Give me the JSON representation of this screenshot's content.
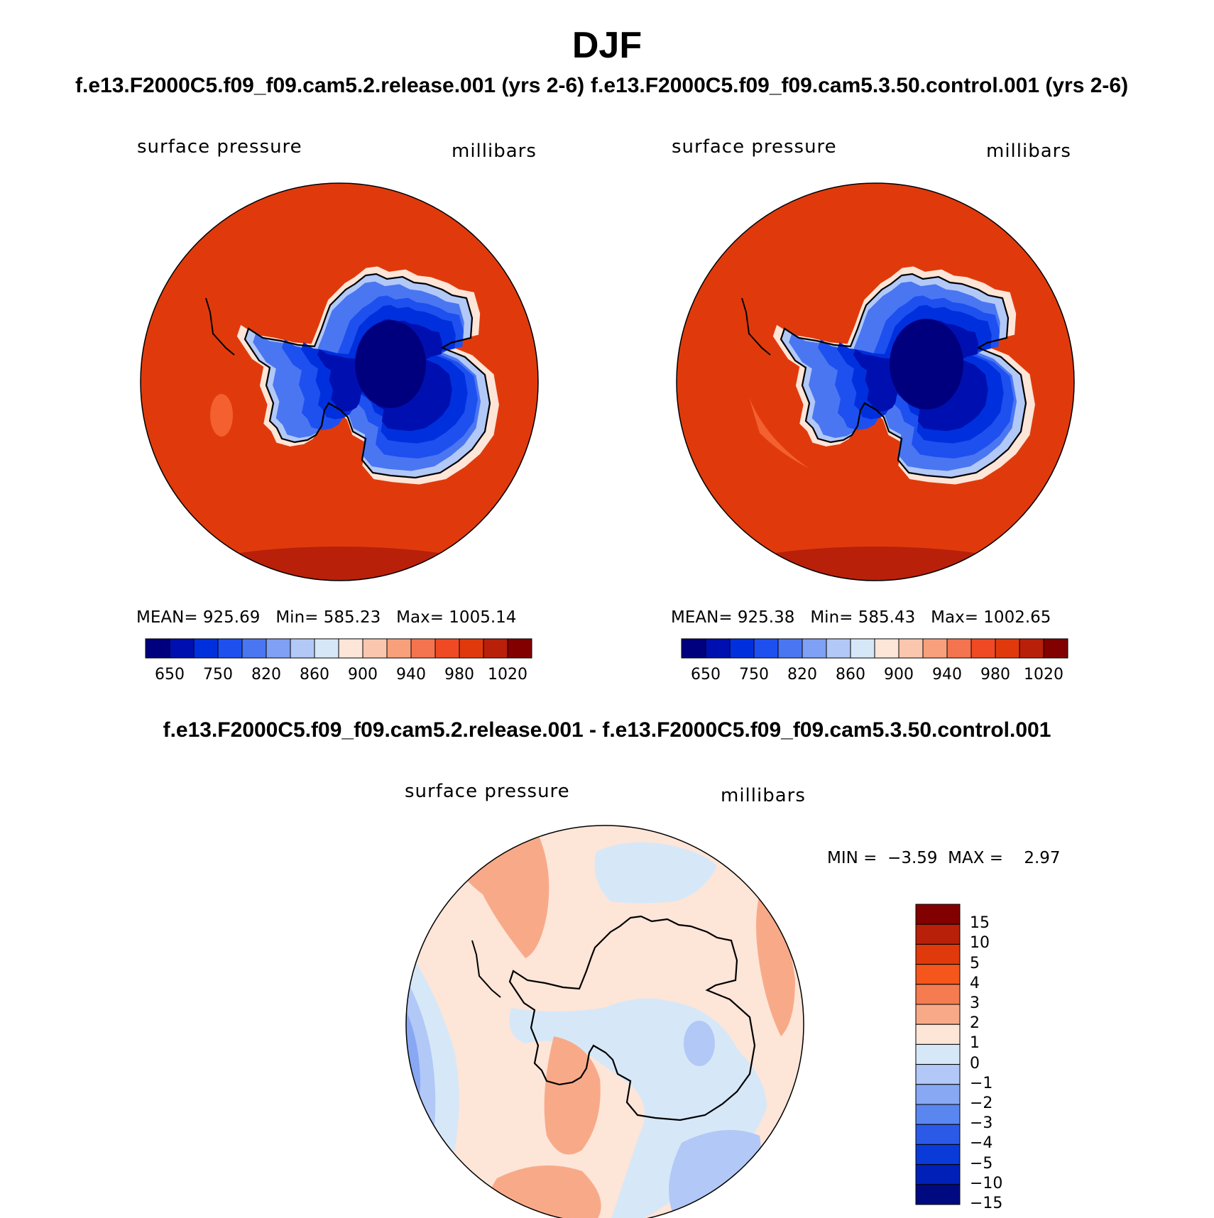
{
  "title": "DJF",
  "panels": [
    {
      "case": "f.e13.F2000C5.f09_f09.cam5.2.release.001 (yrs 2-6)",
      "variable": "surface pressure",
      "units": "millibars",
      "mean_label": "MEAN=",
      "mean": "925.69",
      "min_label": "Min=",
      "min": "585.23",
      "max_label": "Max=",
      "max": "1005.14"
    },
    {
      "case": "f.e13.F2000C5.f09_f09.cam5.3.50.control.001 (yrs 2-6)",
      "variable": "surface pressure",
      "units": "millibars",
      "mean_label": "MEAN=",
      "mean": "925.38",
      "min_label": "Min=",
      "min": "585.43",
      "max_label": "Max=",
      "max": "1002.65"
    }
  ],
  "diff": {
    "title": "f.e13.F2000C5.f09_f09.cam5.2.release.001 - f.e13.F2000C5.f09_f09.cam5.3.50.control.001",
    "variable": "surface pressure",
    "units": "millibars",
    "min_label": "MIN =",
    "min": "−3.59",
    "max_label": "MAX =",
    "max": "2.97"
  },
  "chart_data": [
    {
      "type": "heatmap",
      "projection": "south polar stereographic",
      "region": "Antarctica",
      "field": "surface pressure",
      "units": "millibars",
      "colorbar": {
        "orientation": "horizontal",
        "tick_labels": [
          "650",
          "750",
          "820",
          "860",
          "900",
          "940",
          "980",
          "1020"
        ],
        "colors": [
          "#00007f",
          "#0010b0",
          "#0030dd",
          "#1e50f0",
          "#4a76f2",
          "#7fa0f4",
          "#b2c8f6",
          "#d6e8f8",
          "#fde5d8",
          "#fbc6ae",
          "#f8a07c",
          "#f47450",
          "#ef4a24",
          "#e03a0c",
          "#b8200a",
          "#820000"
        ]
      },
      "mean": 925.69,
      "min": 585.23,
      "max": 1005.14
    },
    {
      "type": "heatmap",
      "projection": "south polar stereographic",
      "region": "Antarctica",
      "field": "surface pressure",
      "units": "millibars",
      "colorbar": {
        "orientation": "horizontal",
        "tick_labels": [
          "650",
          "750",
          "820",
          "860",
          "900",
          "940",
          "980",
          "1020"
        ],
        "colors": [
          "#00007f",
          "#0010b0",
          "#0030dd",
          "#1e50f0",
          "#4a76f2",
          "#7fa0f4",
          "#b2c8f6",
          "#d6e8f8",
          "#fde5d8",
          "#fbc6ae",
          "#f8a07c",
          "#f47450",
          "#ef4a24",
          "#e03a0c",
          "#b8200a",
          "#820000"
        ]
      },
      "mean": 925.38,
      "min": 585.43,
      "max": 1002.65
    },
    {
      "type": "heatmap",
      "projection": "south polar stereographic",
      "region": "Antarctica",
      "field": "surface pressure difference",
      "units": "millibars",
      "colorbar": {
        "orientation": "vertical",
        "tick_labels": [
          "15",
          "10",
          "5",
          "4",
          "3",
          "2",
          "1",
          "0",
          "−1",
          "−2",
          "−3",
          "−4",
          "−5",
          "−10",
          "−15"
        ],
        "colors": [
          "#820000",
          "#b8200a",
          "#e03a0c",
          "#f4561c",
          "#f47c50",
          "#f8aa88",
          "#fde5d8",
          "#d6e8f8",
          "#b2c8f6",
          "#88a8f4",
          "#5a86f0",
          "#2c5ae8",
          "#0a3ad8",
          "#0020b8",
          "#000a80"
        ]
      },
      "min": -3.59,
      "max": 2.97
    }
  ]
}
